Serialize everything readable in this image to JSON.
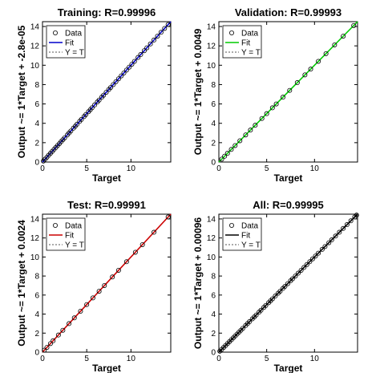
{
  "chart_data": [
    {
      "type": "scatter",
      "title": "Training: R=0.99996",
      "xlabel": "Target",
      "ylabel": "Output ~= 1*Target + -2.8e-05",
      "xlim": [
        0,
        14.5
      ],
      "ylim": [
        0,
        14.5
      ],
      "xticks": [
        "0",
        "5",
        "10"
      ],
      "yticks": [
        "0",
        "2",
        "4",
        "6",
        "8",
        "10",
        "12",
        "14"
      ],
      "fit_color": "#0000cc",
      "legend": {
        "placement": "top-left",
        "entries": [
          "Data",
          "Fit",
          "Y = T"
        ]
      },
      "series": [
        {
          "name": "Data",
          "x": [
            0.1,
            0.3,
            0.5,
            0.7,
            0.9,
            1.1,
            1.3,
            1.5,
            1.7,
            1.9,
            2.1,
            2.3,
            2.5,
            2.8,
            3.0,
            3.2,
            3.5,
            3.7,
            3.9,
            4.2,
            4.4,
            4.7,
            4.9,
            5.2,
            5.4,
            5.6,
            5.9,
            6.2,
            6.4,
            6.7,
            6.9,
            7.2,
            7.5,
            7.7,
            8.0,
            8.3,
            8.6,
            8.9,
            9.2,
            9.5,
            9.8,
            10.1,
            10.4,
            10.8,
            11.1,
            11.5,
            11.8,
            12.2,
            12.6,
            13.0,
            13.4,
            13.8,
            14.2
          ],
          "y": [
            0.1,
            0.3,
            0.5,
            0.7,
            0.9,
            1.1,
            1.3,
            1.5,
            1.7,
            1.9,
            2.1,
            2.3,
            2.5,
            2.8,
            3.0,
            3.2,
            3.5,
            3.7,
            3.9,
            4.2,
            4.4,
            4.7,
            4.9,
            5.2,
            5.4,
            5.6,
            5.9,
            6.2,
            6.4,
            6.7,
            6.9,
            7.2,
            7.5,
            7.7,
            8.0,
            8.3,
            8.6,
            8.9,
            9.2,
            9.5,
            9.8,
            10.1,
            10.4,
            10.8,
            11.1,
            11.5,
            11.8,
            12.2,
            12.6,
            13.0,
            13.4,
            13.8,
            14.2
          ]
        },
        {
          "name": "Fit",
          "x": [
            0,
            14.5
          ],
          "y": [
            0,
            14.5
          ]
        },
        {
          "name": "Y = T",
          "x": [
            0,
            14.5
          ],
          "y": [
            0,
            14.5
          ]
        }
      ]
    },
    {
      "type": "scatter",
      "title": "Validation: R=0.99993",
      "xlabel": "Target",
      "ylabel": "Output ~= 1*Target + 0.0049",
      "xlim": [
        0,
        14.5
      ],
      "ylim": [
        0,
        14.5
      ],
      "xticks": [
        "0",
        "5",
        "10"
      ],
      "yticks": [
        "0",
        "2",
        "4",
        "6",
        "8",
        "10",
        "12",
        "14"
      ],
      "fit_color": "#00cc00",
      "legend": {
        "placement": "top-left",
        "entries": [
          "Data",
          "Fit",
          "Y = T"
        ]
      },
      "series": [
        {
          "name": "Data",
          "x": [
            0.3,
            0.6,
            0.9,
            1.3,
            1.7,
            2.2,
            2.8,
            3.3,
            3.8,
            4.5,
            5.0,
            5.6,
            6.0,
            6.7,
            7.4,
            8.2,
            9.0,
            9.6,
            10.4,
            11.2,
            12.1,
            13.0,
            14.1
          ],
          "y": [
            0.3,
            0.6,
            0.9,
            1.3,
            1.7,
            2.2,
            2.8,
            3.3,
            3.8,
            4.5,
            5.0,
            5.6,
            6.0,
            6.7,
            7.4,
            8.2,
            9.0,
            9.6,
            10.4,
            11.2,
            12.1,
            13.0,
            14.1
          ]
        },
        {
          "name": "Fit",
          "x": [
            0,
            14.5
          ],
          "y": [
            0,
            14.5
          ]
        },
        {
          "name": "Y = T",
          "x": [
            0,
            14.5
          ],
          "y": [
            0,
            14.5
          ]
        }
      ]
    },
    {
      "type": "scatter",
      "title": "Test: R=0.99991",
      "xlabel": "Target",
      "ylabel": "Output ~= 1*Target + 0.0024",
      "xlim": [
        0,
        14.5
      ],
      "ylim": [
        0,
        14.5
      ],
      "xticks": [
        "0",
        "5",
        "10"
      ],
      "yticks": [
        "0",
        "2",
        "4",
        "6",
        "8",
        "10",
        "12",
        "14"
      ],
      "fit_color": "#cc0000",
      "legend": {
        "placement": "top-left",
        "entries": [
          "Data",
          "Fit",
          "Y = T"
        ]
      },
      "series": [
        {
          "name": "Data",
          "x": [
            0.2,
            0.5,
            0.9,
            1.2,
            1.8,
            2.3,
            3.0,
            3.6,
            4.3,
            5.0,
            5.7,
            6.4,
            7.0,
            7.9,
            8.6,
            9.5,
            10.5,
            11.3,
            12.6,
            14.2
          ],
          "y": [
            0.2,
            0.5,
            0.9,
            1.2,
            1.8,
            2.3,
            3.0,
            3.6,
            4.3,
            5.0,
            5.7,
            6.4,
            7.0,
            7.9,
            8.6,
            9.5,
            10.5,
            11.3,
            12.6,
            14.2
          ]
        },
        {
          "name": "Fit",
          "x": [
            0,
            14.5
          ],
          "y": [
            0,
            14.5
          ]
        },
        {
          "name": "Y = T",
          "x": [
            0,
            14.5
          ],
          "y": [
            0,
            14.5
          ]
        }
      ]
    },
    {
      "type": "scatter",
      "title": "All: R=0.99995",
      "xlabel": "Target",
      "ylabel": "Output ~= 1*Target + 0.00096",
      "xlim": [
        0,
        14.5
      ],
      "ylim": [
        0,
        14.5
      ],
      "xticks": [
        "0",
        "5",
        "10"
      ],
      "yticks": [
        "0",
        "2",
        "4",
        "6",
        "8",
        "10",
        "12",
        "14"
      ],
      "fit_color": "#000000",
      "legend": {
        "placement": "top-left",
        "entries": [
          "Data",
          "Fit",
          "Y = T"
        ]
      },
      "series": [
        {
          "name": "Data",
          "x": [
            0.1,
            0.3,
            0.5,
            0.7,
            0.9,
            1.1,
            1.3,
            1.5,
            1.7,
            1.9,
            2.1,
            2.3,
            2.5,
            2.8,
            3.0,
            3.2,
            3.5,
            3.7,
            3.9,
            4.2,
            4.4,
            4.7,
            4.9,
            5.2,
            5.4,
            5.6,
            5.9,
            6.2,
            6.4,
            6.7,
            6.9,
            7.2,
            7.5,
            7.7,
            8.0,
            8.3,
            8.6,
            8.9,
            9.2,
            9.5,
            9.8,
            10.1,
            10.4,
            10.8,
            11.1,
            11.5,
            11.8,
            12.2,
            12.6,
            13.0,
            13.4,
            13.8,
            14.2,
            14.4
          ],
          "y": [
            0.1,
            0.3,
            0.5,
            0.7,
            0.9,
            1.1,
            1.3,
            1.5,
            1.7,
            1.9,
            2.1,
            2.3,
            2.5,
            2.8,
            3.0,
            3.2,
            3.5,
            3.7,
            3.9,
            4.2,
            4.4,
            4.7,
            4.9,
            5.2,
            5.4,
            5.6,
            5.9,
            6.2,
            6.4,
            6.7,
            6.9,
            7.2,
            7.5,
            7.7,
            8.0,
            8.3,
            8.6,
            8.9,
            9.2,
            9.5,
            9.8,
            10.1,
            10.4,
            10.8,
            11.1,
            11.5,
            11.8,
            12.2,
            12.6,
            13.0,
            13.4,
            13.8,
            14.2,
            14.4
          ]
        },
        {
          "name": "Fit",
          "x": [
            0,
            14.5
          ],
          "y": [
            0,
            14.5
          ]
        },
        {
          "name": "Y = T",
          "x": [
            0,
            14.5
          ],
          "y": [
            0,
            14.5
          ]
        }
      ]
    }
  ]
}
